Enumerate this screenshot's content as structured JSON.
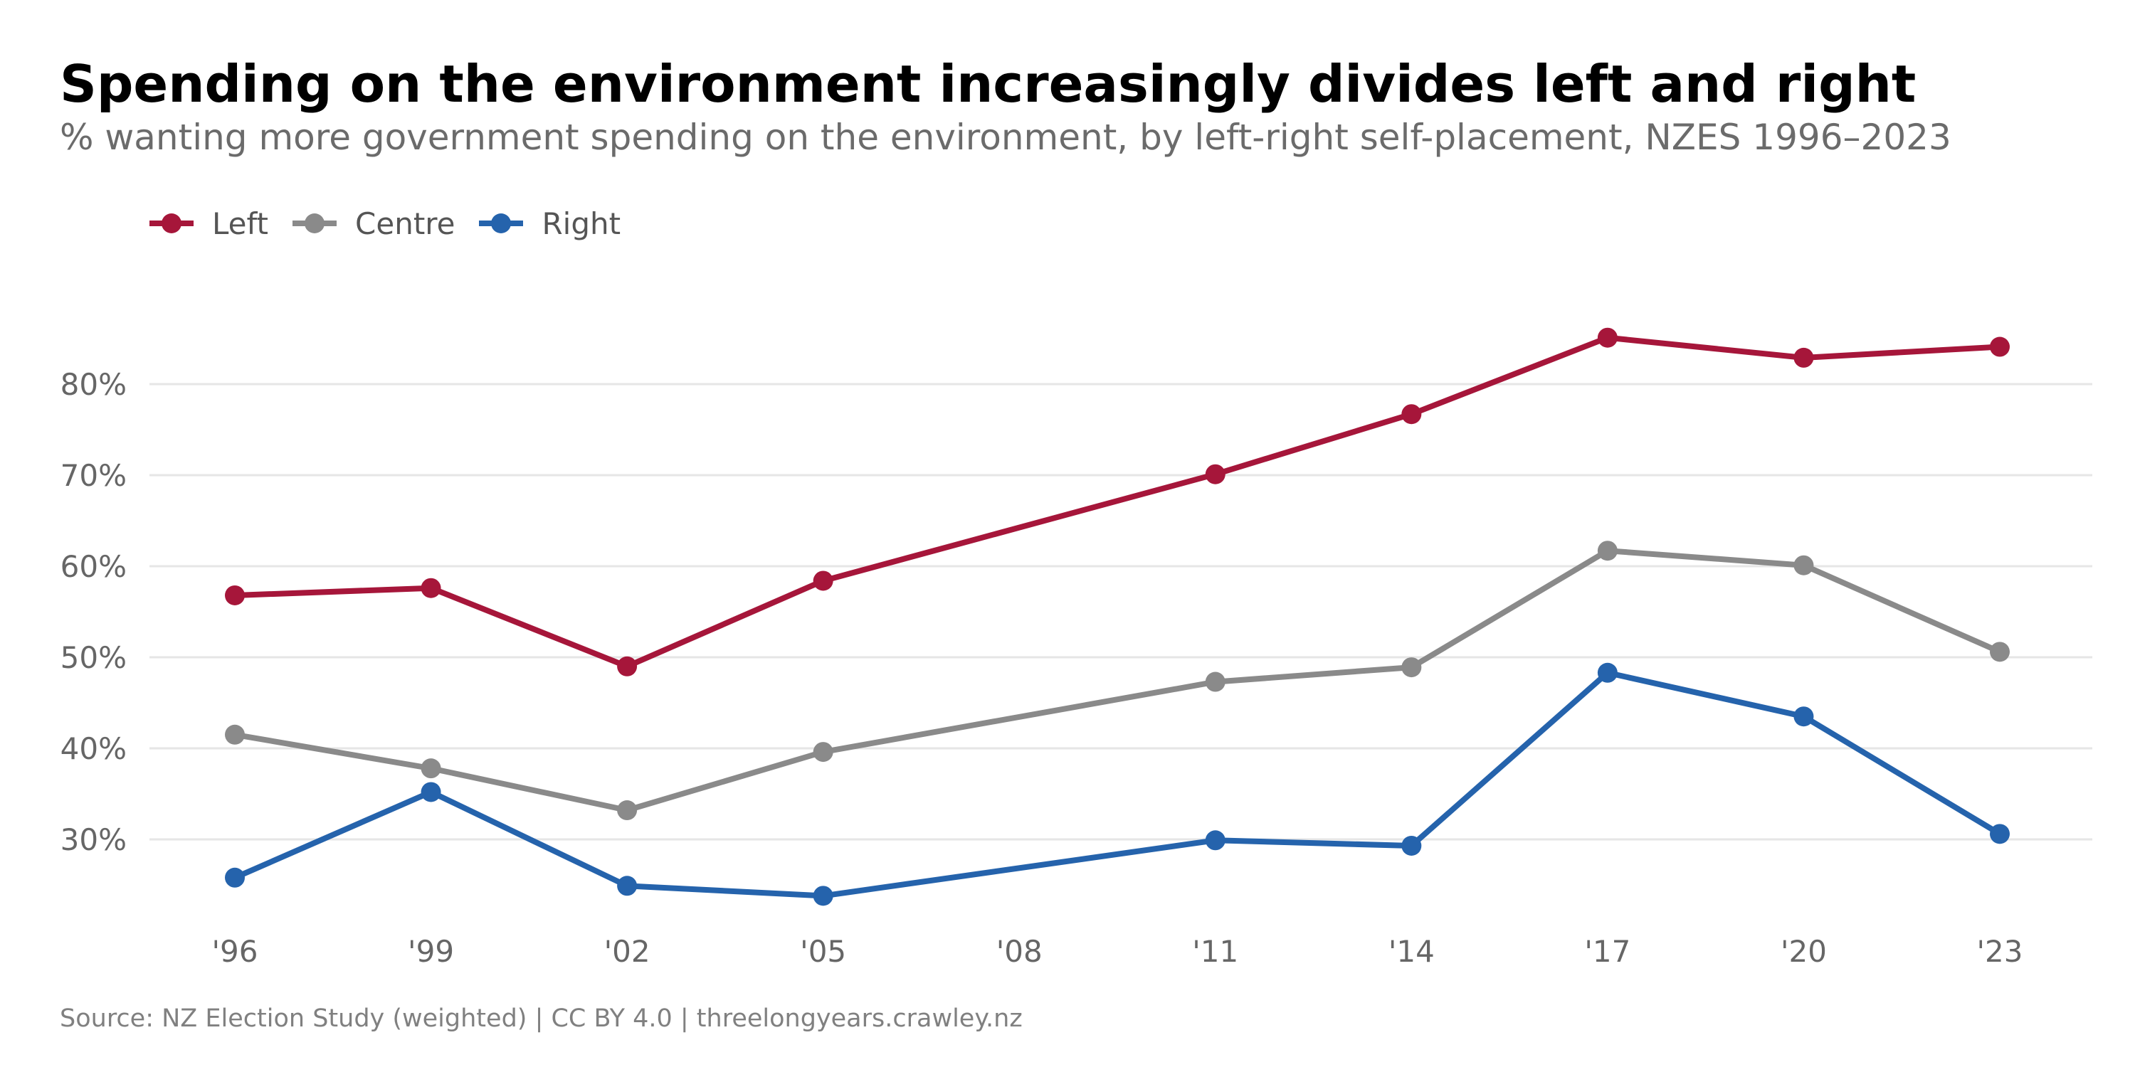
{
  "chart_data": {
    "type": "line",
    "title": "Spending on the environment increasingly divides left and right",
    "subtitle": "% wanting more government spending on the environment, by left-right self-placement, NZES 1996–2023",
    "source": "Source: NZ Election Study (weighted) | CC BY 4.0 | threelongyears.crawley.nz",
    "x": [
      1996,
      1999,
      2002,
      2005,
      2008,
      2011,
      2014,
      2017,
      2020,
      2023
    ],
    "xtick_labels": [
      "'96",
      "'99",
      "'02",
      "'05",
      "'08",
      "'11",
      "'14",
      "'17",
      "'20",
      "'23"
    ],
    "ylim": [
      20,
      90
    ],
    "yticks": [
      30,
      40,
      50,
      60,
      70,
      80
    ],
    "ytick_labels": [
      "30%",
      "40%",
      "50%",
      "60%",
      "70%",
      "80%"
    ],
    "grid": "horizontal",
    "legend_position": "top-left",
    "series": [
      {
        "name": "Left",
        "color": "#a6163a",
        "points": [
          [
            1996,
            56.8
          ],
          [
            1999,
            57.6
          ],
          [
            2002,
            49.0
          ],
          [
            2005,
            58.4
          ],
          [
            2011,
            70.1
          ],
          [
            2014,
            76.7
          ],
          [
            2017,
            85.1
          ],
          [
            2020,
            82.9
          ],
          [
            2023,
            84.1
          ]
        ]
      },
      {
        "name": "Centre",
        "color": "#8a8a8a",
        "points": [
          [
            1996,
            41.5
          ],
          [
            1999,
            37.8
          ],
          [
            2002,
            33.2
          ],
          [
            2005,
            39.6
          ],
          [
            2011,
            47.3
          ],
          [
            2014,
            48.9
          ],
          [
            2017,
            61.7
          ],
          [
            2020,
            60.1
          ],
          [
            2023,
            50.6
          ]
        ]
      },
      {
        "name": "Right",
        "color": "#2563ac",
        "points": [
          [
            1996,
            25.8
          ],
          [
            1999,
            35.2
          ],
          [
            2002,
            24.9
          ],
          [
            2005,
            23.8
          ],
          [
            2011,
            29.9
          ],
          [
            2014,
            29.3
          ],
          [
            2017,
            48.3
          ],
          [
            2020,
            43.5
          ],
          [
            2023,
            30.6
          ]
        ]
      }
    ]
  }
}
